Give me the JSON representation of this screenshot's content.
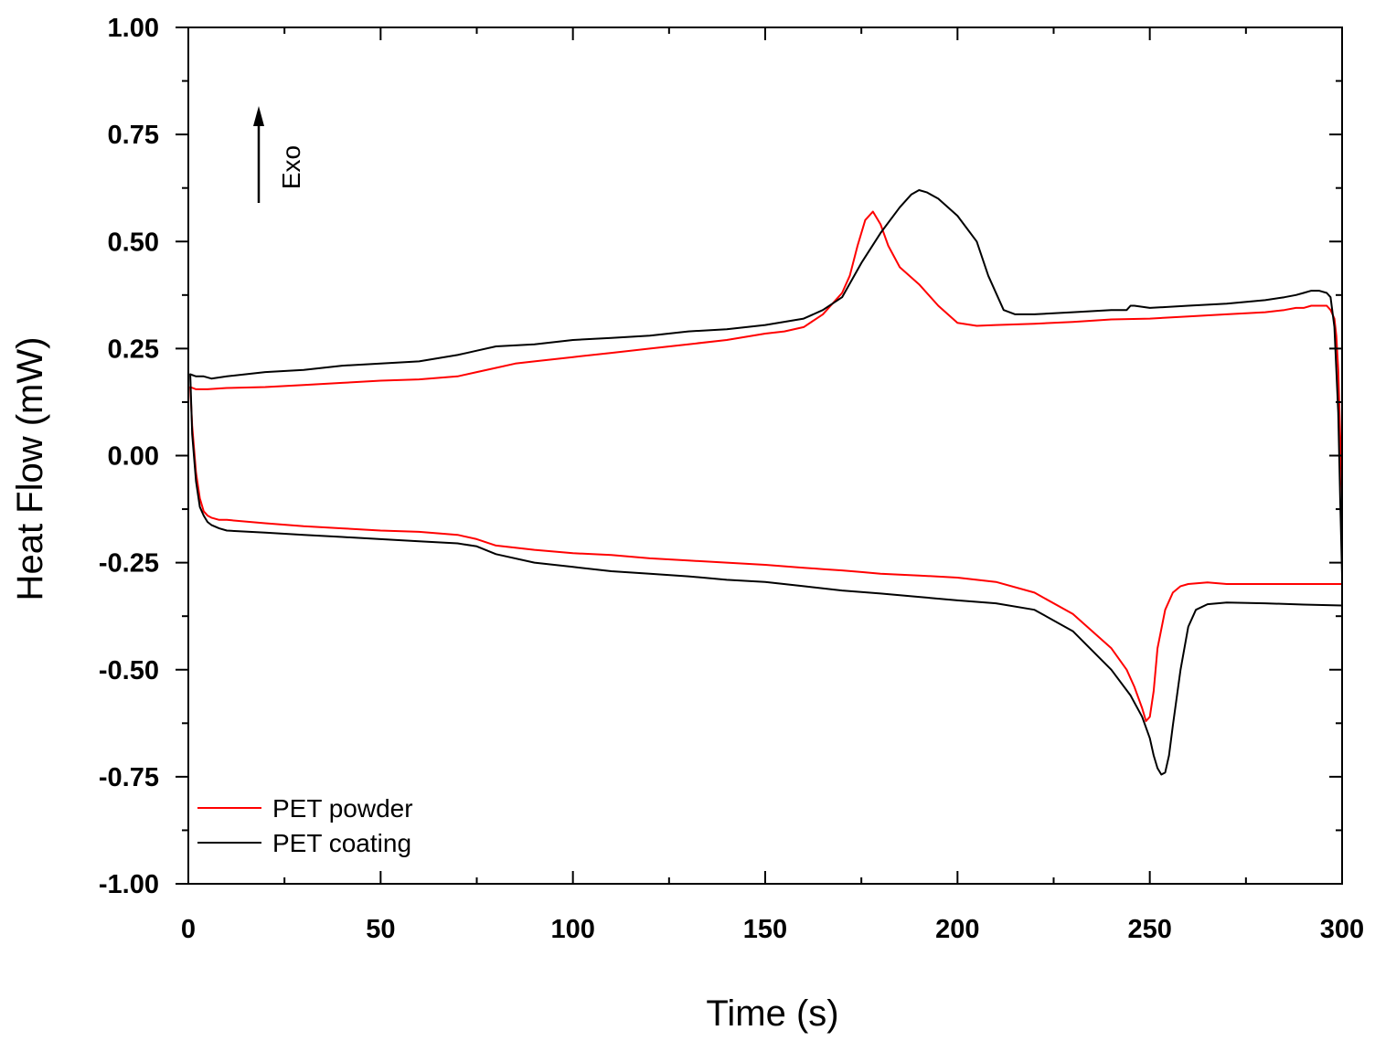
{
  "chart_data": {
    "type": "line",
    "title": "",
    "xlabel": "Time (s)",
    "ylabel": "Heat Flow (mW)",
    "xlim": [
      0,
      300
    ],
    "ylim": [
      -1.0,
      1.0
    ],
    "x_ticks": [
      0,
      50,
      100,
      150,
      200,
      250,
      300
    ],
    "x_tick_labels": [
      "0",
      "50",
      "100",
      "150",
      "200",
      "250",
      "300"
    ],
    "y_ticks": [
      1.0,
      0.75,
      0.5,
      0.25,
      0.0,
      -0.25,
      -0.5,
      -0.75,
      -1.0
    ],
    "y_tick_labels": [
      "1.00",
      "0.75",
      "0.50",
      "0.25",
      "0.00",
      "-0.25",
      "-0.50",
      "-0.75",
      "-1.00"
    ],
    "grid": false,
    "legend_position": "bottom-left",
    "annotation": {
      "text": "Exo",
      "arrow_direction": "up"
    },
    "series": [
      {
        "name": "PET powder",
        "color": "#ff0000",
        "x": [
          0.5,
          1,
          2,
          3,
          4,
          5,
          6,
          8,
          10,
          20,
          30,
          40,
          50,
          60,
          70,
          75,
          80,
          90,
          100,
          110,
          120,
          130,
          140,
          150,
          160,
          165,
          170,
          175,
          180,
          185,
          190,
          200,
          205,
          210,
          220,
          230,
          240,
          244,
          246,
          248,
          249,
          250,
          251,
          252,
          254,
          256,
          258,
          260,
          265,
          270,
          280,
          290,
          300,
          300,
          299.5,
          299,
          298.5,
          298,
          297,
          296,
          294,
          292,
          290,
          288,
          285,
          280,
          270,
          260,
          250,
          240,
          230,
          220,
          210,
          205,
          200,
          195,
          190,
          185,
          182,
          180,
          178,
          176,
          174,
          172,
          170,
          165,
          160,
          155,
          150,
          140,
          130,
          120,
          110,
          100,
          90,
          85,
          80,
          75,
          70,
          60,
          50,
          40,
          30,
          20,
          10,
          5,
          2,
          0.5
        ],
        "y": [
          0.16,
          0.07,
          -0.04,
          -0.1,
          -0.13,
          -0.14,
          -0.145,
          -0.15,
          -0.15,
          -0.158,
          -0.165,
          -0.17,
          -0.175,
          -0.178,
          -0.185,
          -0.195,
          -0.21,
          -0.22,
          -0.228,
          -0.232,
          -0.24,
          -0.245,
          -0.25,
          -0.255,
          -0.262,
          -0.265,
          -0.268,
          -0.272,
          -0.276,
          -0.278,
          -0.28,
          -0.285,
          -0.29,
          -0.295,
          -0.32,
          -0.37,
          -0.45,
          -0.5,
          -0.54,
          -0.59,
          -0.62,
          -0.61,
          -0.55,
          -0.45,
          -0.36,
          -0.32,
          -0.305,
          -0.3,
          -0.296,
          -0.3,
          -0.3,
          -0.3,
          -0.3,
          -0.1,
          0.05,
          0.2,
          0.28,
          0.32,
          0.34,
          0.35,
          0.35,
          0.35,
          0.345,
          0.345,
          0.34,
          0.335,
          0.33,
          0.325,
          0.32,
          0.318,
          0.312,
          0.308,
          0.305,
          0.303,
          0.31,
          0.35,
          0.4,
          0.44,
          0.49,
          0.54,
          0.57,
          0.55,
          0.49,
          0.42,
          0.38,
          0.33,
          0.3,
          0.29,
          0.285,
          0.27,
          0.26,
          0.25,
          0.24,
          0.23,
          0.22,
          0.215,
          0.205,
          0.195,
          0.185,
          0.178,
          0.175,
          0.17,
          0.165,
          0.16,
          0.158,
          0.155,
          0.155,
          0.16
        ]
      },
      {
        "name": "PET coating",
        "color": "#000000",
        "x": [
          0.5,
          1,
          2,
          3,
          4,
          5,
          6,
          8,
          10,
          20,
          30,
          40,
          50,
          60,
          70,
          75,
          80,
          90,
          100,
          110,
          120,
          130,
          140,
          150,
          160,
          170,
          180,
          190,
          200,
          210,
          220,
          230,
          240,
          245,
          248,
          250,
          251,
          252,
          253,
          254,
          255,
          256,
          258,
          260,
          262,
          265,
          270,
          280,
          290,
          300,
          300,
          299.5,
          299,
          298,
          297,
          296,
          294,
          292,
          290,
          288,
          285,
          280,
          270,
          260,
          250,
          246,
          245,
          244,
          240,
          230,
          220,
          215,
          212,
          208,
          205,
          200,
          195,
          192,
          190,
          188,
          185,
          180,
          175,
          170,
          165,
          160,
          150,
          140,
          130,
          120,
          110,
          100,
          90,
          80,
          75,
          70,
          60,
          50,
          40,
          30,
          20,
          10,
          6,
          4,
          2,
          0.5
        ],
        "y": [
          0.19,
          0.05,
          -0.06,
          -0.12,
          -0.14,
          -0.155,
          -0.162,
          -0.17,
          -0.175,
          -0.18,
          -0.185,
          -0.19,
          -0.195,
          -0.2,
          -0.205,
          -0.212,
          -0.23,
          -0.25,
          -0.26,
          -0.27,
          -0.276,
          -0.282,
          -0.29,
          -0.295,
          -0.305,
          -0.315,
          -0.322,
          -0.33,
          -0.338,
          -0.345,
          -0.36,
          -0.41,
          -0.5,
          -0.56,
          -0.61,
          -0.66,
          -0.7,
          -0.73,
          -0.745,
          -0.74,
          -0.7,
          -0.63,
          -0.5,
          -0.4,
          -0.36,
          -0.347,
          -0.343,
          -0.345,
          -0.348,
          -0.35,
          -0.28,
          -0.1,
          0.1,
          0.3,
          0.37,
          0.38,
          0.385,
          0.385,
          0.38,
          0.375,
          0.37,
          0.363,
          0.355,
          0.35,
          0.345,
          0.35,
          0.35,
          0.34,
          0.34,
          0.335,
          0.33,
          0.33,
          0.34,
          0.42,
          0.5,
          0.56,
          0.6,
          0.615,
          0.62,
          0.61,
          0.58,
          0.52,
          0.45,
          0.37,
          0.34,
          0.32,
          0.305,
          0.295,
          0.29,
          0.28,
          0.275,
          0.27,
          0.26,
          0.255,
          0.245,
          0.235,
          0.22,
          0.215,
          0.21,
          0.2,
          0.195,
          0.185,
          0.18,
          0.185,
          0.185,
          0.19
        ]
      }
    ]
  }
}
